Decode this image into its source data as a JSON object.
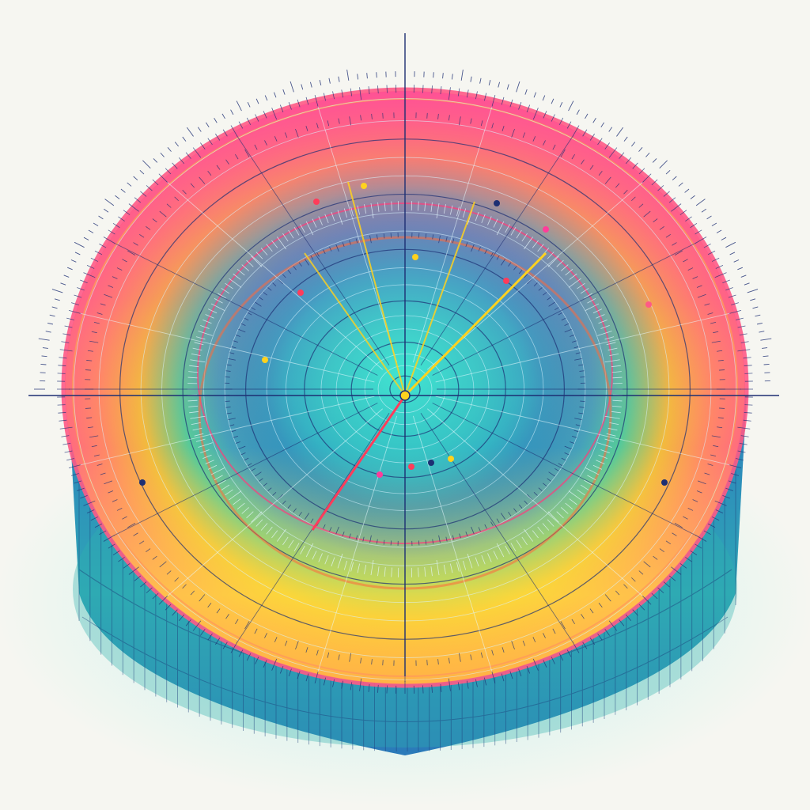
{
  "illustration": {
    "subject": "radial-dial-disc",
    "colors": {
      "background": "#f6f6f1",
      "rim_pink": "#ff5a86",
      "rim_orange": "#ff9a3c",
      "rim_yellow": "#ffe13a",
      "band_teal": "#28c9b5",
      "band_blue": "#1f7fc8",
      "center_cyan": "#32d6c8",
      "line_navy": "#1d2f73",
      "side_blue": "#2a78b8",
      "side_teal": "#2fb3b0",
      "needle_yellow": "#ffd21e",
      "needle_red": "#ff3c5a",
      "glow": "#9ef2ea"
    }
  }
}
